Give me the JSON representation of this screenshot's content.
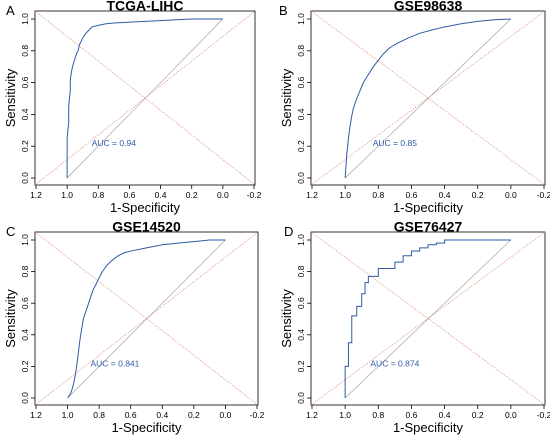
{
  "colors": {
    "curve": "#2f5aa8",
    "auc_text": "#2f5aa8",
    "diagonal": "#e07050",
    "chance_line": "#9a9a9a",
    "frame": "#000000"
  },
  "chart_data": [
    {
      "type": "line",
      "panel_letter": "A",
      "title": "TCGA-LIHC",
      "xlabel": "1-Specificity",
      "ylabel": "Sensitivity",
      "xlim": [
        1.2,
        -0.2
      ],
      "ylim": [
        0,
        1
      ],
      "x_reversed": true,
      "x_ticks": [
        "1.2",
        "1.0",
        "0.8",
        "0.6",
        "0.4",
        "0.2",
        "0.0",
        "-0.2"
      ],
      "y_ticks": [
        "0.0",
        "0.2",
        "0.4",
        "0.6",
        "0.8",
        "1.0"
      ],
      "annotation": "AUC = 0.94",
      "grid": false,
      "series": [
        {
          "x": [
            1.0,
            1.0,
            0.99,
            0.99,
            0.98,
            0.98,
            0.97,
            0.96,
            0.95,
            0.94,
            0.93,
            0.92,
            0.9,
            0.88,
            0.86,
            0.84,
            0.8,
            0.75,
            0.7,
            0.6,
            0.5,
            0.4,
            0.3,
            0.2,
            0.1,
            0.0
          ],
          "y": [
            0.0,
            0.25,
            0.35,
            0.45,
            0.55,
            0.62,
            0.68,
            0.72,
            0.75,
            0.78,
            0.8,
            0.84,
            0.88,
            0.91,
            0.93,
            0.95,
            0.96,
            0.97,
            0.975,
            0.98,
            0.985,
            0.99,
            0.995,
            1.0,
            1.0,
            1.0
          ]
        }
      ]
    },
    {
      "type": "line",
      "panel_letter": "B",
      "title": "GSE98638",
      "xlabel": "1-Specificity",
      "ylabel": "Sensitivity",
      "xlim": [
        1.2,
        -0.2
      ],
      "ylim": [
        0,
        1
      ],
      "x_reversed": true,
      "x_ticks": [
        "1.2",
        "1.0",
        "0.8",
        "0.6",
        "0.4",
        "0.2",
        "0.0",
        "-0.2"
      ],
      "y_ticks": [
        "0.0",
        "0.2",
        "0.4",
        "0.6",
        "0.8",
        "1.0"
      ],
      "annotation": "AUC = 0.85",
      "grid": false,
      "series": [
        {
          "x": [
            1.0,
            0.99,
            0.98,
            0.97,
            0.96,
            0.95,
            0.93,
            0.91,
            0.89,
            0.86,
            0.83,
            0.8,
            0.77,
            0.73,
            0.68,
            0.62,
            0.55,
            0.48,
            0.4,
            0.3,
            0.2,
            0.1,
            0.0
          ],
          "y": [
            0.0,
            0.15,
            0.25,
            0.33,
            0.39,
            0.44,
            0.5,
            0.55,
            0.6,
            0.65,
            0.7,
            0.74,
            0.78,
            0.82,
            0.85,
            0.88,
            0.91,
            0.93,
            0.95,
            0.97,
            0.985,
            0.995,
            1.0
          ]
        }
      ]
    },
    {
      "type": "line",
      "panel_letter": "C",
      "title": "GSE14520",
      "xlabel": "1-Specificity",
      "ylabel": "Sensitivity",
      "xlim": [
        1.2,
        -0.2
      ],
      "ylim": [
        0,
        1
      ],
      "x_reversed": true,
      "x_ticks": [
        "1.2",
        "1.0",
        "0.8",
        "0.6",
        "0.4",
        "0.2",
        "0.0",
        "-0.2"
      ],
      "y_ticks": [
        "0.0",
        "0.2",
        "0.4",
        "0.6",
        "0.8",
        "1.0"
      ],
      "annotation": "AUC = 0.841",
      "grid": false,
      "series": [
        {
          "x": [
            1.0,
            0.98,
            0.97,
            0.96,
            0.95,
            0.94,
            0.93,
            0.92,
            0.91,
            0.9,
            0.88,
            0.86,
            0.84,
            0.82,
            0.8,
            0.78,
            0.75,
            0.72,
            0.68,
            0.64,
            0.6,
            0.5,
            0.4,
            0.3,
            0.2,
            0.1,
            0.0
          ],
          "y": [
            0.0,
            0.03,
            0.06,
            0.1,
            0.15,
            0.22,
            0.3,
            0.38,
            0.44,
            0.5,
            0.56,
            0.62,
            0.68,
            0.72,
            0.76,
            0.8,
            0.84,
            0.87,
            0.9,
            0.92,
            0.93,
            0.95,
            0.97,
            0.98,
            0.99,
            1.0,
            1.0
          ]
        }
      ]
    },
    {
      "type": "line",
      "panel_letter": "D",
      "title": "GSE76427",
      "xlabel": "1-Specificity",
      "ylabel": "Sensitivity",
      "xlim": [
        1.2,
        -0.2
      ],
      "ylim": [
        0,
        1
      ],
      "x_reversed": true,
      "x_ticks": [
        "1.2",
        "1.0",
        "0.8",
        "0.6",
        "0.4",
        "0.2",
        "0.0",
        "-0.2"
      ],
      "y_ticks": [
        "0.0",
        "0.2",
        "0.4",
        "0.6",
        "0.8",
        "1.0"
      ],
      "annotation": "AUC = 0.874",
      "grid": false,
      "series": [
        {
          "x": [
            1.0,
            1.0,
            0.98,
            0.98,
            0.96,
            0.96,
            0.93,
            0.93,
            0.9,
            0.9,
            0.88,
            0.88,
            0.86,
            0.86,
            0.8,
            0.8,
            0.7,
            0.7,
            0.65,
            0.65,
            0.6,
            0.6,
            0.55,
            0.55,
            0.5,
            0.5,
            0.45,
            0.45,
            0.4,
            0.4,
            0.0
          ],
          "y": [
            0.0,
            0.2,
            0.2,
            0.35,
            0.35,
            0.52,
            0.52,
            0.58,
            0.58,
            0.66,
            0.66,
            0.73,
            0.73,
            0.77,
            0.77,
            0.82,
            0.82,
            0.86,
            0.86,
            0.9,
            0.9,
            0.93,
            0.93,
            0.95,
            0.95,
            0.97,
            0.97,
            0.98,
            0.98,
            1.0,
            1.0
          ]
        }
      ]
    }
  ]
}
